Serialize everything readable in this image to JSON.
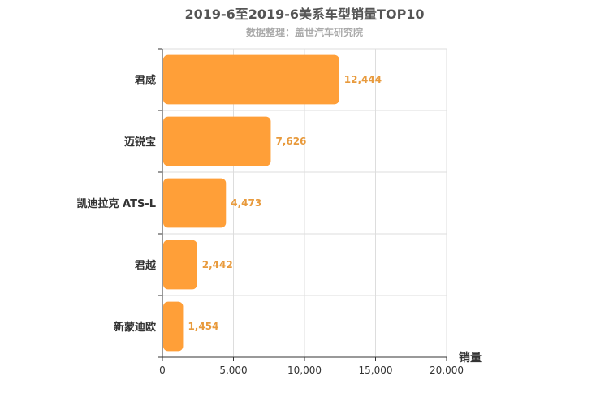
{
  "chart_data": {
    "type": "bar",
    "orientation": "horizontal",
    "title": "2019-6至2019-6美系车型销量TOP10",
    "subtitle": "数据整理：盖世汽车研究院",
    "categories": [
      "君威",
      "迈锐宝",
      "凯迪拉克 ATS-L",
      "君越",
      "新蒙迪欧"
    ],
    "values": [
      12444,
      7626,
      4473,
      2442,
      1454
    ],
    "value_labels": [
      "12,444",
      "7,626",
      "4,473",
      "2,442",
      "1,454"
    ],
    "xlabel": "销量",
    "xlim": [
      0,
      20000
    ],
    "xticks": [
      0,
      5000,
      10000,
      15000,
      20000
    ],
    "xtick_labels": [
      "0",
      "5,000",
      "10,000",
      "15,000",
      "20,000"
    ],
    "grid": true,
    "bar_color": "#ff9f38",
    "label_color": "#e89a3c"
  }
}
